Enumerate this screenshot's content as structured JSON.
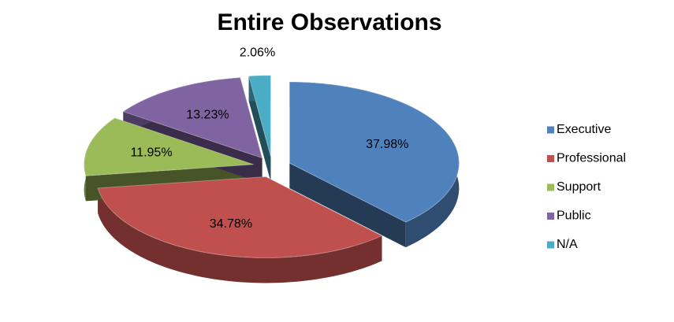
{
  "chart_data": {
    "type": "pie",
    "title": "Entire Observations",
    "categories": [
      "Executive",
      "Professional",
      "Support",
      "Public",
      "N/A"
    ],
    "values": [
      37.98,
      34.78,
      11.95,
      13.23,
      2.06
    ],
    "value_labels": [
      "37.98%",
      "34.78%",
      "11.95%",
      "13.23%",
      "2.06%"
    ],
    "colors": [
      "#4f81bd",
      "#c0504d",
      "#9bbb59",
      "#8064a2",
      "#4bacc6"
    ],
    "legend": "right"
  }
}
